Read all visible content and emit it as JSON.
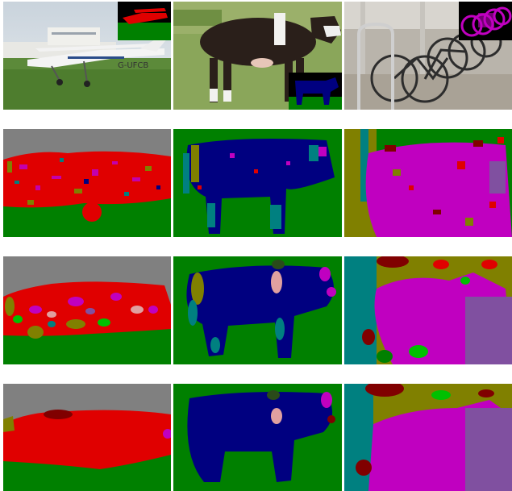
{
  "figure": {
    "rows": [
      {
        "kind": "photo",
        "images": [
          {
            "subject": "airplane",
            "inset": "ground-truth-mask"
          },
          {
            "subject": "cow",
            "inset": "ground-truth-mask"
          },
          {
            "subject": "bicycles",
            "inset": "ground-truth-mask"
          }
        ]
      },
      {
        "kind": "noisy-segmentation",
        "images": [
          {
            "subject": "airplane"
          },
          {
            "subject": "cow"
          },
          {
            "subject": "bicycles"
          }
        ]
      },
      {
        "kind": "intermediate-segmentation",
        "images": [
          {
            "subject": "airplane"
          },
          {
            "subject": "cow"
          },
          {
            "subject": "bicycles"
          }
        ]
      },
      {
        "kind": "smooth-segmentation",
        "images": [
          {
            "subject": "airplane"
          },
          {
            "subject": "cow"
          },
          {
            "subject": "bicycles"
          }
        ]
      }
    ],
    "photo_text": {
      "aircraft_registration": "G-UFCB"
    },
    "palette": {
      "background": "#808080",
      "grass": "#008000",
      "airplane": "#e00000",
      "cow": "#000080",
      "bicycle": "#c000c0",
      "olive": "#808000",
      "teal": "#008080",
      "maroon": "#800000",
      "lime": "#00c000",
      "pink": "#e0a0a0",
      "purple": "#8050a0",
      "magenta": "#c00080"
    }
  }
}
